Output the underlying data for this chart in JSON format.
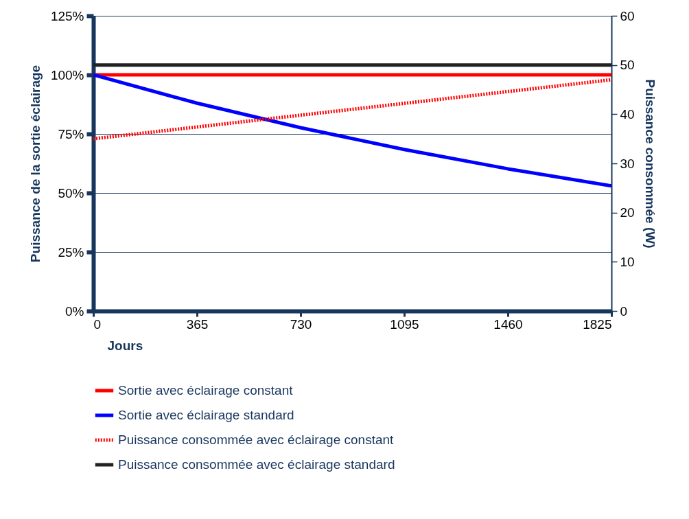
{
  "chart_data": {
    "type": "line",
    "xlabel": "Jours",
    "ylabel": "Puissance de la sortie éclairage",
    "y2label": "Puissance consommée (W)",
    "xlim": [
      0,
      1825
    ],
    "xticks": [
      0,
      365,
      730,
      1095,
      1460,
      1825
    ],
    "ylim": [
      0,
      125
    ],
    "yticks": [
      {
        "value": 0,
        "label": "0%"
      },
      {
        "value": 25,
        "label": "25%"
      },
      {
        "value": 50,
        "label": "50%"
      },
      {
        "value": 75,
        "label": "75%"
      },
      {
        "value": 100,
        "label": "100%"
      },
      {
        "value": 125,
        "label": "125%"
      }
    ],
    "y2lim": [
      0,
      60
    ],
    "y2ticks": [
      0,
      10,
      20,
      30,
      40,
      50,
      60
    ],
    "grid": "y",
    "legend": "bottom",
    "series": [
      {
        "name": "Sortie avec éclairage constant",
        "color": "#ff0000",
        "line_style": "solid",
        "x": [
          0,
          1825
        ],
        "values": [
          100,
          100
        ]
      },
      {
        "name": "Sortie avec éclairage standard",
        "color": "#0000ff",
        "line_style": "solid",
        "x": [
          0,
          365,
          730,
          1095,
          1460,
          1825
        ],
        "values": [
          100,
          88,
          77.6,
          68.4,
          60.2,
          53
        ]
      },
      {
        "name": "Puissance consommée avec éclairage constant",
        "color": "#ff0000",
        "line_style": "dotted",
        "axis": "y2",
        "x": [
          0,
          1825
        ],
        "values": [
          35,
          47
        ]
      },
      {
        "name": "Puissance consommée avec éclairage standard",
        "color": "#222222",
        "line_style": "solid",
        "axis": "y2",
        "x": [
          0,
          1825
        ],
        "values": [
          50,
          50
        ]
      }
    ]
  }
}
